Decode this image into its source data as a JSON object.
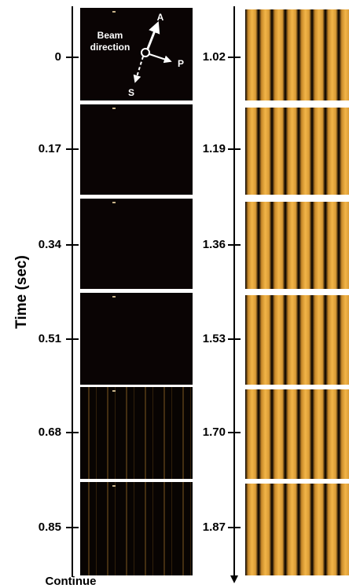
{
  "axis_label": "Time (sec)",
  "left_times": [
    "0",
    "0.17",
    "0.34",
    "0.51",
    "0.68",
    "0.85"
  ],
  "right_times": [
    "1.02",
    "1.19",
    "1.36",
    "1.53",
    "1.70",
    "1.87"
  ],
  "footer": "Continue",
  "annotation": {
    "beam_lines": [
      "Beam",
      "direction"
    ],
    "a": "A",
    "p": "P",
    "s": "S"
  }
}
